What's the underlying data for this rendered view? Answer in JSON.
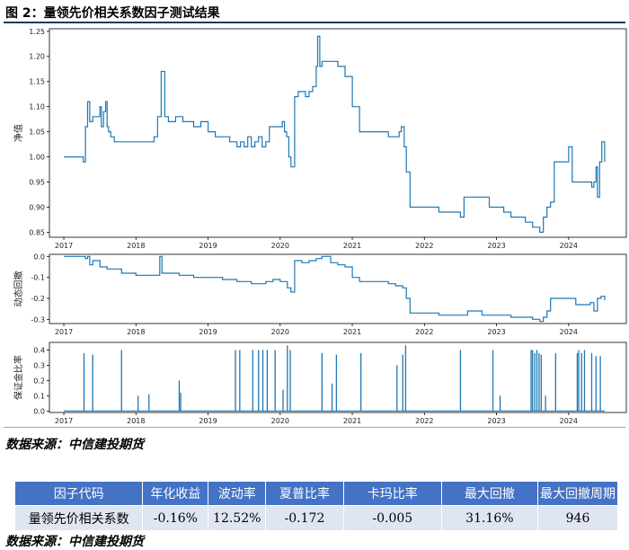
{
  "figure": {
    "title": "图 2：量领先价相关系数因子测试结果",
    "source": "数据来源：中信建投期货"
  },
  "colors": {
    "line": "#1f77b4",
    "header_bg": "#4472c4",
    "cell_bg": "#dfe6f2"
  },
  "chart_data": [
    {
      "type": "line",
      "ylabel": "净值",
      "xlim": [
        2016.8,
        2024.8
      ],
      "ylim": [
        0.84,
        1.255
      ],
      "x_ticks": [
        2017,
        2018,
        2019,
        2020,
        2021,
        2022,
        2023,
        2024
      ],
      "x_tick_labels": [
        "2017",
        "2018",
        "2019",
        "2020",
        "2021",
        "2022",
        "2023",
        "2024"
      ],
      "y_ticks": [
        0.85,
        0.9,
        0.95,
        1.0,
        1.05,
        1.1,
        1.15,
        1.2,
        1.25
      ],
      "y_tick_labels": [
        "0.85",
        "0.90",
        "0.95",
        "1.00",
        "1.05",
        "1.10",
        "1.15",
        "1.20",
        "1.25"
      ],
      "series": [
        {
          "x": [
            2017.0,
            2017.25,
            2017.27,
            2017.3,
            2017.33,
            2017.36,
            2017.4,
            2017.45,
            2017.5,
            2017.52,
            2017.55,
            2017.58,
            2017.6,
            2017.62,
            2017.65,
            2017.68,
            2017.7,
            2017.72,
            2017.75,
            2017.78,
            2017.8,
            2017.85,
            2017.9,
            2017.95,
            2018.0,
            2018.1,
            2018.2,
            2018.25,
            2018.3,
            2018.35,
            2018.4,
            2018.45,
            2018.5,
            2018.55,
            2018.6,
            2018.65,
            2018.7,
            2018.8,
            2018.9,
            2019.0,
            2019.1,
            2019.2,
            2019.3,
            2019.4,
            2019.45,
            2019.5,
            2019.55,
            2019.6,
            2019.65,
            2019.7,
            2019.75,
            2019.8,
            2019.85,
            2019.9,
            2019.95,
            2020.0,
            2020.03,
            2020.06,
            2020.09,
            2020.12,
            2020.15,
            2020.2,
            2020.25,
            2020.3,
            2020.35,
            2020.4,
            2020.45,
            2020.5,
            2020.52,
            2020.55,
            2020.58,
            2020.62,
            2020.7,
            2020.8,
            2020.9,
            2021.0,
            2021.1,
            2021.2,
            2021.3,
            2021.4,
            2021.5,
            2021.6,
            2021.65,
            2021.68,
            2021.72,
            2021.75,
            2021.8,
            2021.9,
            2022.0,
            2022.2,
            2022.4,
            2022.5,
            2022.55,
            2022.6,
            2022.8,
            2022.9,
            2023.0,
            2023.1,
            2023.2,
            2023.3,
            2023.4,
            2023.5,
            2023.55,
            2023.6,
            2023.65,
            2023.7,
            2023.75,
            2023.8,
            2023.85,
            2023.9,
            2023.95,
            2024.0,
            2024.05,
            2024.1,
            2024.15,
            2024.2,
            2024.25,
            2024.3,
            2024.32,
            2024.35,
            2024.38,
            2024.4,
            2024.43,
            2024.46,
            2024.5
          ],
          "y": [
            1.0,
            1.0,
            0.99,
            1.06,
            1.11,
            1.07,
            1.08,
            1.08,
            1.1,
            1.06,
            1.09,
            1.11,
            1.06,
            1.05,
            1.04,
            1.04,
            1.03,
            1.03,
            1.03,
            1.03,
            1.03,
            1.03,
            1.03,
            1.03,
            1.03,
            1.03,
            1.03,
            1.04,
            1.08,
            1.17,
            1.08,
            1.07,
            1.07,
            1.08,
            1.08,
            1.07,
            1.07,
            1.06,
            1.07,
            1.05,
            1.04,
            1.04,
            1.03,
            1.02,
            1.03,
            1.02,
            1.04,
            1.02,
            1.03,
            1.04,
            1.02,
            1.03,
            1.06,
            1.06,
            1.06,
            1.06,
            1.07,
            1.05,
            1.04,
            1.0,
            0.98,
            1.12,
            1.13,
            1.13,
            1.12,
            1.13,
            1.14,
            1.18,
            1.24,
            1.18,
            1.19,
            1.19,
            1.19,
            1.18,
            1.16,
            1.1,
            1.05,
            1.05,
            1.05,
            1.05,
            1.04,
            1.04,
            1.05,
            1.06,
            1.02,
            0.97,
            0.9,
            0.9,
            0.9,
            0.89,
            0.89,
            0.88,
            0.92,
            0.92,
            0.92,
            0.9,
            0.9,
            0.89,
            0.88,
            0.88,
            0.87,
            0.86,
            0.86,
            0.85,
            0.88,
            0.9,
            0.91,
            0.99,
            0.99,
            0.99,
            0.99,
            1.02,
            0.95,
            0.95,
            0.95,
            0.95,
            0.95,
            0.95,
            0.94,
            0.95,
            0.98,
            0.92,
            0.99,
            1.03,
            0.99
          ]
        }
      ]
    },
    {
      "type": "line",
      "ylabel": "动态回撤",
      "xlim": [
        2016.8,
        2024.8
      ],
      "ylim": [
        -0.32,
        0.01
      ],
      "x_ticks": [
        2017,
        2018,
        2019,
        2020,
        2021,
        2022,
        2023,
        2024
      ],
      "x_tick_labels": [
        "2017",
        "2018",
        "2019",
        "2020",
        "2021",
        "2022",
        "2023",
        "2024"
      ],
      "y_ticks": [
        0.0,
        -0.1,
        -0.2,
        -0.3
      ],
      "y_tick_labels": [
        "0.0",
        "-0.1",
        "-0.2",
        "-0.3"
      ],
      "series": [
        {
          "x": [
            2017.0,
            2017.25,
            2017.3,
            2017.33,
            2017.36,
            2017.4,
            2017.5,
            2017.6,
            2017.7,
            2017.8,
            2018.0,
            2018.2,
            2018.3,
            2018.33,
            2018.36,
            2018.4,
            2018.5,
            2018.6,
            2018.7,
            2018.8,
            2019.0,
            2019.2,
            2019.4,
            2019.5,
            2019.6,
            2019.7,
            2019.8,
            2019.9,
            2020.0,
            2020.1,
            2020.15,
            2020.2,
            2020.3,
            2020.4,
            2020.5,
            2020.58,
            2020.7,
            2020.8,
            2020.9,
            2021.0,
            2021.1,
            2021.3,
            2021.5,
            2021.6,
            2021.7,
            2021.75,
            2021.8,
            2022.0,
            2022.2,
            2022.5,
            2022.6,
            2022.8,
            2023.0,
            2023.2,
            2023.4,
            2023.5,
            2023.6,
            2023.65,
            2023.7,
            2023.75,
            2023.8,
            2024.0,
            2024.1,
            2024.2,
            2024.3,
            2024.35,
            2024.4,
            2024.45,
            2024.5
          ],
          "y": [
            0.0,
            0.0,
            -0.01,
            0.0,
            -0.04,
            -0.02,
            -0.05,
            -0.06,
            -0.06,
            -0.08,
            -0.09,
            -0.09,
            -0.09,
            0.0,
            -0.08,
            -0.08,
            -0.08,
            -0.09,
            -0.09,
            -0.1,
            -0.1,
            -0.11,
            -0.12,
            -0.12,
            -0.13,
            -0.13,
            -0.12,
            -0.11,
            -0.12,
            -0.15,
            -0.17,
            -0.02,
            -0.03,
            -0.02,
            -0.01,
            0.0,
            -0.03,
            -0.04,
            -0.05,
            -0.1,
            -0.12,
            -0.12,
            -0.13,
            -0.14,
            -0.15,
            -0.2,
            -0.27,
            -0.27,
            -0.28,
            -0.28,
            -0.26,
            -0.28,
            -0.28,
            -0.29,
            -0.29,
            -0.3,
            -0.31,
            -0.29,
            -0.26,
            -0.2,
            -0.2,
            -0.2,
            -0.23,
            -0.23,
            -0.22,
            -0.26,
            -0.2,
            -0.19,
            -0.21
          ]
        }
      ]
    },
    {
      "type": "line",
      "ylabel": "保证金比率",
      "xlim": [
        2016.8,
        2024.8
      ],
      "ylim": [
        -0.01,
        0.45
      ],
      "x_ticks": [
        2017,
        2018,
        2019,
        2020,
        2021,
        2022,
        2023,
        2024
      ],
      "x_tick_labels": [
        "2017",
        "2018",
        "2019",
        "2020",
        "2021",
        "2022",
        "2023",
        "2024"
      ],
      "y_ticks": [
        0.0,
        0.1,
        0.2,
        0.3,
        0.4
      ],
      "y_tick_labels": [
        "0.0",
        "0.1",
        "0.2",
        "0.3",
        "0.4"
      ],
      "baseline": 0.0,
      "spikes": [
        {
          "x": 2017.28,
          "y": 0.38
        },
        {
          "x": 2017.4,
          "y": 0.37
        },
        {
          "x": 2017.8,
          "y": 0.4
        },
        {
          "x": 2018.03,
          "y": 0.1
        },
        {
          "x": 2018.18,
          "y": 0.11
        },
        {
          "x": 2018.6,
          "y": 0.2
        },
        {
          "x": 2018.62,
          "y": 0.12
        },
        {
          "x": 2019.38,
          "y": 0.4
        },
        {
          "x": 2019.44,
          "y": 0.4
        },
        {
          "x": 2019.62,
          "y": 0.4
        },
        {
          "x": 2019.7,
          "y": 0.4
        },
        {
          "x": 2019.76,
          "y": 0.4
        },
        {
          "x": 2019.82,
          "y": 0.4
        },
        {
          "x": 2019.93,
          "y": 0.4
        },
        {
          "x": 2020.04,
          "y": 0.14
        },
        {
          "x": 2020.1,
          "y": 0.43
        },
        {
          "x": 2020.14,
          "y": 0.4
        },
        {
          "x": 2020.58,
          "y": 0.38
        },
        {
          "x": 2020.72,
          "y": 0.18
        },
        {
          "x": 2020.78,
          "y": 0.37
        },
        {
          "x": 2021.12,
          "y": 0.38
        },
        {
          "x": 2021.62,
          "y": 0.3
        },
        {
          "x": 2021.7,
          "y": 0.37
        },
        {
          "x": 2021.74,
          "y": 0.43
        },
        {
          "x": 2022.5,
          "y": 0.4
        },
        {
          "x": 2022.95,
          "y": 0.4
        },
        {
          "x": 2023.05,
          "y": 0.1
        },
        {
          "x": 2023.48,
          "y": 0.4
        },
        {
          "x": 2023.5,
          "y": 0.4
        },
        {
          "x": 2023.53,
          "y": 0.38
        },
        {
          "x": 2023.56,
          "y": 0.4
        },
        {
          "x": 2023.59,
          "y": 0.38
        },
        {
          "x": 2023.62,
          "y": 0.37
        },
        {
          "x": 2023.68,
          "y": 0.1
        },
        {
          "x": 2023.82,
          "y": 0.38
        },
        {
          "x": 2024.12,
          "y": 0.38
        },
        {
          "x": 2024.14,
          "y": 0.4
        },
        {
          "x": 2024.18,
          "y": 0.38
        },
        {
          "x": 2024.22,
          "y": 0.4
        },
        {
          "x": 2024.32,
          "y": 0.38
        },
        {
          "x": 2024.38,
          "y": 0.36
        },
        {
          "x": 2024.44,
          "y": 0.36
        }
      ]
    }
  ],
  "table": {
    "headers": [
      "因子代码",
      "年化收益",
      "波动率",
      "夏普比率",
      "卡玛比率",
      "最大回撤",
      "最大回撤周期"
    ],
    "rows": [
      [
        "量领先价相关系数",
        "-0.16%",
        "12.52%",
        "-0.172",
        "-0.005",
        "31.16%",
        "946"
      ]
    ]
  }
}
